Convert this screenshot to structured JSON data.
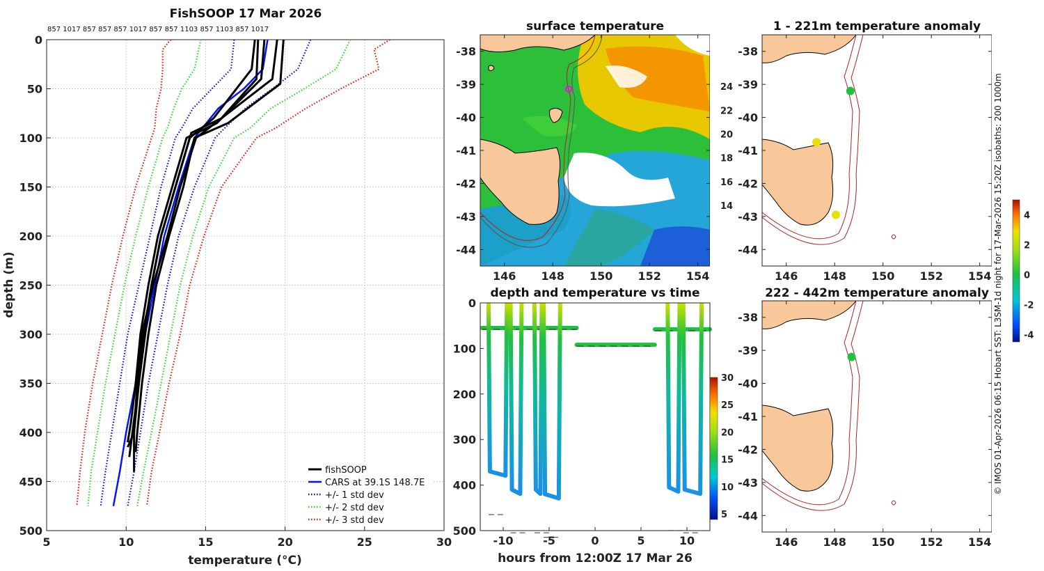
{
  "main_title": "FishSOOP 17 Mar 2026",
  "probe_ids": "857 1017 857 857 857 1017 857 857 1103 857 1103 857 1017",
  "colors": {
    "fishsoop": "#000000",
    "cars": "#0016ff",
    "std1": "#0000ee",
    "std2": "#22dd22",
    "std3": "#ee1100",
    "land": "#f8c89a",
    "coast": "#000000",
    "isobath": "#b22222"
  },
  "chart_data": [
    {
      "type": "line",
      "title": "FishSOOP 17 Mar 2026",
      "xlabel": "temperature (°C)",
      "ylabel": "depth (m)",
      "xlim": [
        5,
        30
      ],
      "ylim": [
        500,
        0
      ],
      "xticks": [
        "5",
        "10",
        "15",
        "20",
        "25",
        "30"
      ],
      "yticks": [
        "0",
        "50",
        "100",
        "150",
        "200",
        "250",
        "300",
        "350",
        "400",
        "450",
        "500"
      ],
      "grid": true,
      "legend_position": "bottom-right",
      "legend": [
        "fishSOOP",
        "CARS at 39.1S 148.7E",
        "+/- 1 std dev",
        "+/- 2 std dev",
        "+/- 3 std dev"
      ],
      "series": [
        {
          "name": "CARS at 39.1S 148.7E",
          "style": "solid",
          "depth": [
            0,
            30,
            50,
            70,
            90,
            100,
            150,
            200,
            250,
            300,
            350,
            400,
            440,
            475
          ],
          "temp": [
            18.9,
            18.6,
            17.4,
            15.8,
            14.8,
            14.3,
            13.3,
            12.4,
            11.8,
            11.2,
            10.6,
            10.0,
            9.6,
            9.2
          ]
        },
        {
          "name": "-1 std",
          "style": "dotted",
          "ref": 2,
          "depth": [
            0,
            30,
            50,
            70,
            90,
            100,
            150,
            200,
            250,
            300,
            350,
            400,
            440,
            475
          ],
          "temp": [
            16.8,
            16.6,
            15.4,
            14.2,
            13.5,
            13.1,
            12.2,
            11.5,
            10.8,
            10.1,
            9.6,
            9.1,
            8.7,
            8.4
          ]
        },
        {
          "name": "+1 std",
          "style": "dotted",
          "ref": 2,
          "depth": [
            0,
            30,
            50,
            70,
            90,
            100,
            150,
            200,
            250,
            300,
            350,
            400,
            440,
            475
          ],
          "temp": [
            21.6,
            20.8,
            19.2,
            17.5,
            16.2,
            15.6,
            14.3,
            13.3,
            12.6,
            12.0,
            11.4,
            10.9,
            10.5,
            10.1
          ]
        },
        {
          "name": "-2 std",
          "style": "dotted",
          "ref": 3,
          "depth": [
            0,
            30,
            50,
            70,
            90,
            100,
            150,
            200,
            250,
            300,
            350,
            400,
            440,
            475
          ],
          "temp": [
            14.7,
            14.3,
            13.5,
            13.0,
            12.6,
            12.3,
            11.4,
            10.6,
            9.9,
            9.3,
            8.7,
            8.2,
            7.8,
            7.6
          ]
        },
        {
          "name": "+2 std",
          "style": "dotted",
          "ref": 3,
          "depth": [
            0,
            30,
            50,
            70,
            90,
            100,
            150,
            200,
            250,
            300,
            350,
            400,
            440,
            475
          ],
          "temp": [
            24.1,
            23.2,
            21.2,
            19.1,
            17.8,
            16.8,
            15.2,
            14.2,
            13.4,
            12.8,
            12.2,
            11.6,
            11.1,
            10.7
          ]
        },
        {
          "name": "-3 std",
          "style": "dotted",
          "ref": 4,
          "depth": [
            0,
            10,
            30,
            50,
            70,
            90,
            100,
            150,
            200,
            250,
            300,
            350,
            400,
            440,
            475
          ],
          "temp": [
            12.8,
            12.3,
            12.3,
            12.2,
            11.9,
            11.8,
            11.6,
            10.6,
            9.8,
            9.1,
            8.5,
            7.9,
            7.4,
            7.1,
            6.9
          ]
        },
        {
          "name": "+3 std",
          "style": "dotted",
          "ref": 4,
          "depth": [
            0,
            10,
            30,
            50,
            70,
            90,
            100,
            150,
            200,
            250,
            300,
            350,
            400,
            440,
            475
          ],
          "temp": [
            26.6,
            25.6,
            25.9,
            23.5,
            21.3,
            19.4,
            18.2,
            16.0,
            14.9,
            14.0,
            13.4,
            12.7,
            12.1,
            11.6,
            11.3
          ]
        },
        {
          "name": "fishSOOP cast 1",
          "style": "cast",
          "depth": [
            0,
            40,
            80,
            95,
            150,
            200,
            250,
            300,
            350,
            400,
            415
          ],
          "temp": [
            18.3,
            18.2,
            16.0,
            14.1,
            13.1,
            12.2,
            11.6,
            11.2,
            10.8,
            10.5,
            10.1
          ]
        },
        {
          "name": "fishSOOP cast 2",
          "style": "cast",
          "depth": [
            0,
            45,
            85,
            100,
            150,
            200,
            250,
            300,
            350,
            400,
            420
          ],
          "temp": [
            19.9,
            19.7,
            16.4,
            14.3,
            13.6,
            12.7,
            11.9,
            11.4,
            11.0,
            10.7,
            10.6
          ]
        },
        {
          "name": "fishSOOP cast 3",
          "style": "cast",
          "depth": [
            0,
            40,
            85,
            100,
            150,
            200,
            250,
            300,
            350,
            390,
            410
          ],
          "temp": [
            18.7,
            18.5,
            15.7,
            13.8,
            12.9,
            12.0,
            11.4,
            10.9,
            10.6,
            10.3,
            10.1
          ]
        },
        {
          "name": "fishSOOP cast 4",
          "style": "cast",
          "depth": [
            0,
            40,
            90,
            100,
            150,
            200,
            250,
            300,
            350,
            400,
            440
          ],
          "temp": [
            19.5,
            19.2,
            15.2,
            14.4,
            13.4,
            12.6,
            11.7,
            11.0,
            10.7,
            10.5,
            10.5
          ]
        },
        {
          "name": "fishSOOP cast 5",
          "style": "cast",
          "depth": [
            0,
            30,
            80,
            100,
            150,
            200,
            250,
            300,
            350,
            400,
            425
          ],
          "temp": [
            18.1,
            17.9,
            15.5,
            14.0,
            13.1,
            12.2,
            11.6,
            11.1,
            10.8,
            10.4,
            10.2
          ]
        }
      ]
    },
    {
      "type": "heatmap",
      "title": "surface temperature",
      "xlim": [
        145,
        154.5
      ],
      "ylim": [
        -44.5,
        -37.5
      ],
      "xticks": [
        "146",
        "148",
        "150",
        "152",
        "154"
      ],
      "yticks": [
        "-38",
        "-39",
        "-40",
        "-41",
        "-42",
        "-43",
        "-44"
      ],
      "colorbar": {
        "min": 13,
        "max": 25,
        "ticks": [
          "14",
          "16",
          "18",
          "20",
          "22",
          "24"
        ]
      }
    },
    {
      "type": "scatter",
      "title": "depth and temperature vs time",
      "xlabel": "hours from 12:00Z 17 Mar 26",
      "xlim": [
        -12.5,
        12.5
      ],
      "ylim": [
        500,
        0
      ],
      "xticks": [
        "-10",
        "-5",
        "0",
        "5",
        "10"
      ],
      "yticks": [
        "0",
        "100",
        "200",
        "300",
        "400",
        "500"
      ],
      "colorbar": {
        "min": 4,
        "max": 30,
        "ticks": [
          "5",
          "10",
          "15",
          "20",
          "25",
          "30"
        ]
      },
      "dives": [
        {
          "start": -11.6,
          "end": -9.6,
          "depth": 370
        },
        {
          "start": -9.2,
          "end": -8.0,
          "depth": 410
        },
        {
          "start": -6.6,
          "end": -5.8,
          "depth": 410
        },
        {
          "start": -5.6,
          "end": -3.8,
          "depth": 420
        },
        {
          "start": 7.9,
          "end": 9.2,
          "depth": 405
        },
        {
          "start": 9.6,
          "end": 11.6,
          "depth": 410
        }
      ],
      "shallow_tows": [
        {
          "start": -12.3,
          "end": -2.0,
          "depth": 55,
          "temp": 17
        },
        {
          "start": -2.0,
          "end": 6.5,
          "depth": 92,
          "temp": 15
        },
        {
          "start": 6.5,
          "end": 12.5,
          "depth": 58,
          "temp": 16.5
        }
      ]
    },
    {
      "type": "scatter",
      "title": "1 - 221m temperature anomaly",
      "xlim": [
        145,
        154.5
      ],
      "ylim": [
        -44.5,
        -37.5
      ],
      "xticks": [
        "146",
        "148",
        "150",
        "152",
        "154"
      ],
      "yticks": [
        "-38",
        "-39",
        "-40",
        "-41",
        "-42",
        "-43",
        "-44"
      ],
      "points": [
        {
          "lon": 148.65,
          "lat": -39.2,
          "anom": 0.2
        },
        {
          "lon": 147.25,
          "lat": -40.75,
          "anom": 2.4
        },
        {
          "lon": 148.05,
          "lat": -42.95,
          "anom": 2.1
        }
      ]
    },
    {
      "type": "scatter",
      "title": "222 - 442m temperature anomaly",
      "xlim": [
        145,
        154.5
      ],
      "ylim": [
        -44.5,
        -37.5
      ],
      "xticks": [
        "146",
        "148",
        "150",
        "152",
        "154"
      ],
      "yticks": [
        "-38",
        "-39",
        "-40",
        "-41",
        "-42",
        "-43",
        "-44"
      ],
      "points": [
        {
          "lon": 148.7,
          "lat": -39.2,
          "anom": 0.3
        }
      ],
      "colorbar": {
        "min": -4.5,
        "max": 5,
        "ticks": [
          "-4",
          "-2",
          "0",
          "2",
          "4"
        ]
      }
    }
  ],
  "credit": "© IMOS 01-Apr-2026 06:15 Hobart SST: L3SM-1d night for 17-Mar-2026 15:20Z isobaths: 200  1000m"
}
